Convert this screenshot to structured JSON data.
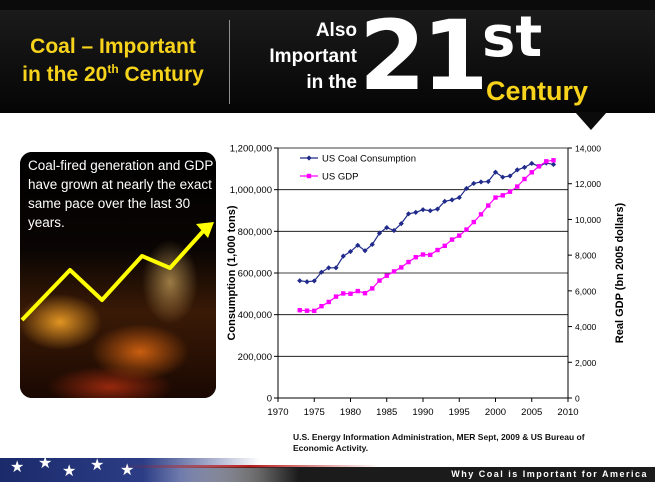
{
  "header": {
    "left_title_line1": "Coal – Important",
    "left_title_line2_pre": "in the 20",
    "left_title_sup": "th",
    "left_title_line2_post": " Century",
    "also_line1": "Also",
    "also_line2": "Important",
    "also_line3": "in the",
    "big_number": "21",
    "big_suffix": "st",
    "century": "Century"
  },
  "callout": {
    "text": "Coal-fired generation and GDP have grown at nearly the exact same pace over the last 30 years."
  },
  "source": "U.S. Energy Information Administration, MER Sept, 2009 & US Bureau of Economic Activity.",
  "footer": {
    "text": "Why Coal is Important for America"
  },
  "colors": {
    "banner": "#0b0b0b",
    "accent_yellow": "#f7d31b",
    "coal_series": "#1f2a8a",
    "gdp_series": "#ff00ff",
    "arrow": "#ffff00"
  },
  "chart_data": {
    "type": "line",
    "x": [
      1973,
      1974,
      1975,
      1976,
      1977,
      1978,
      1979,
      1980,
      1981,
      1982,
      1983,
      1984,
      1985,
      1986,
      1987,
      1988,
      1989,
      1990,
      1991,
      1992,
      1993,
      1994,
      1995,
      1996,
      1997,
      1998,
      1999,
      2000,
      2001,
      2002,
      2003,
      2004,
      2005,
      2006,
      2007,
      2008
    ],
    "x_ticks": [
      "1970",
      "1975",
      "1980",
      "1985",
      "1990",
      "1995",
      "2000",
      "2005",
      "2010"
    ],
    "xlim": [
      1970,
      2010
    ],
    "y_ticks": [
      "0",
      "200,000",
      "400,000",
      "600,000",
      "800,000",
      "1,000,000",
      "1,200,000"
    ],
    "ylim": [
      0,
      1200000
    ],
    "y2_ticks": [
      "0",
      "2,000",
      "4,000",
      "6,000",
      "8,000",
      "10,000",
      "12,000",
      "14,000"
    ],
    "y2lim": [
      0,
      14000
    ],
    "ylabel": "Consumption (1,000 tons)",
    "y2label": "Real GDP (bn 2005 dollars)",
    "grid": "horizontal",
    "legend_position": "top-left",
    "series": [
      {
        "name": "US Coal Consumption",
        "axis": "left",
        "marker": "diamond",
        "values": [
          563000,
          558000,
          562000,
          604000,
          625000,
          625000,
          681000,
          703000,
          733000,
          707000,
          737000,
          791000,
          818000,
          804000,
          837000,
          884000,
          891000,
          904000,
          899000,
          907000,
          944000,
          951000,
          962000,
          1006000,
          1030000,
          1037000,
          1039000,
          1084000,
          1060000,
          1066000,
          1095000,
          1107000,
          1126000,
          1112000,
          1128000,
          1121000
        ]
      },
      {
        "name": "US GDP",
        "axis": "right",
        "marker": "square",
        "values": [
          4917,
          4890,
          4880,
          5141,
          5378,
          5678,
          5855,
          5839,
          5987,
          5871,
          6136,
          6577,
          6849,
          7087,
          7313,
          7614,
          7886,
          8034,
          8015,
          8287,
          8523,
          8871,
          9094,
          9434,
          9854,
          10284,
          10780,
          11226,
          11347,
          11553,
          11841,
          12264,
          12638,
          12976,
          13254,
          13312
        ]
      }
    ]
  }
}
